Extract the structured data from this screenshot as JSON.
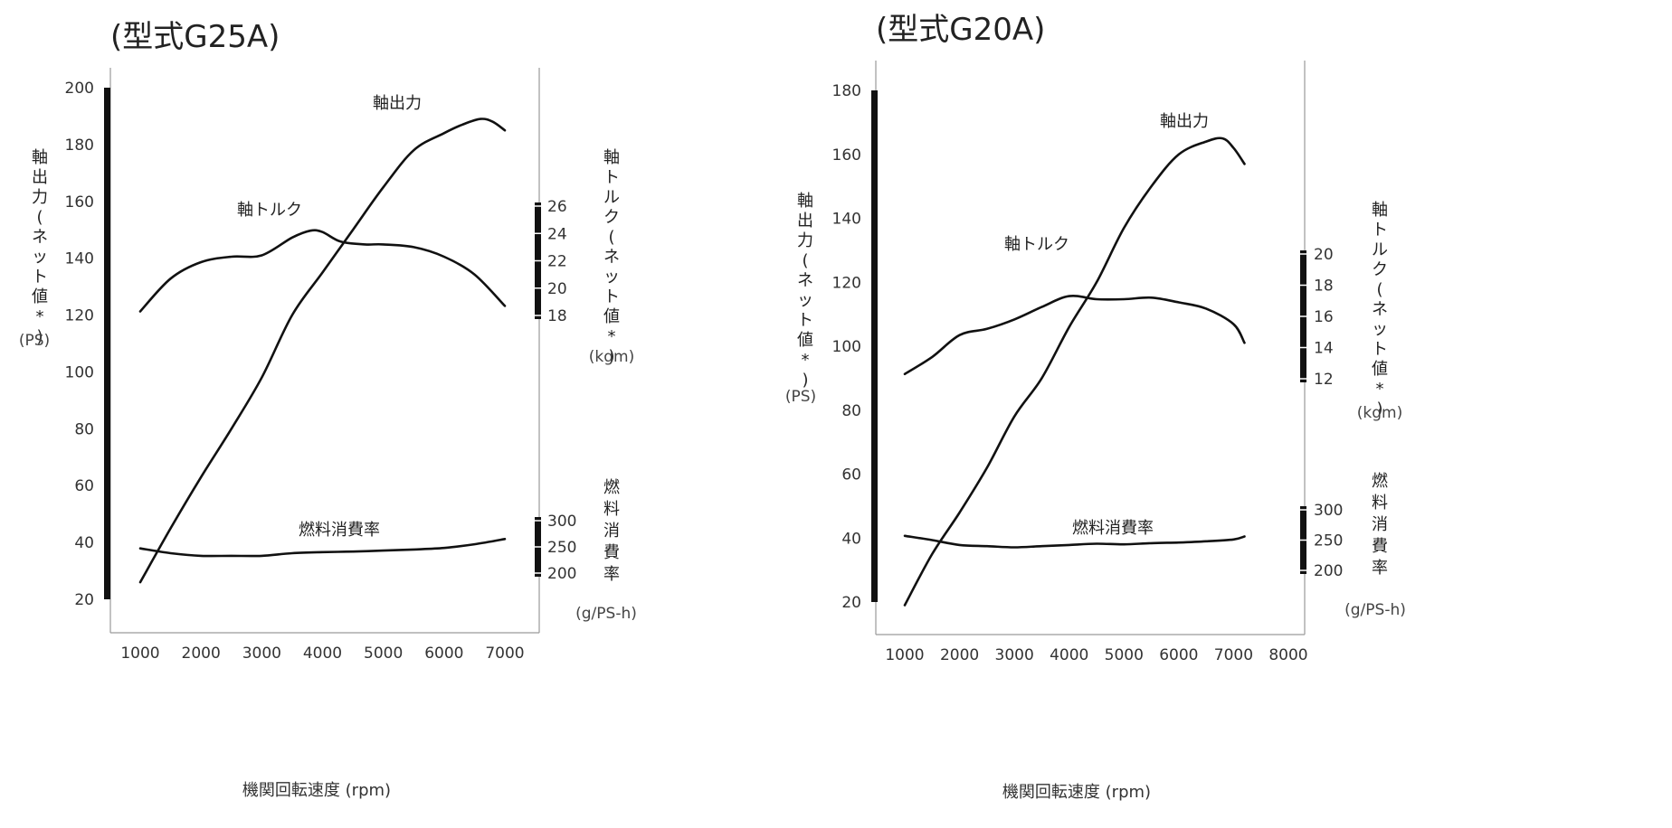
{
  "chart_data": [
    {
      "type": "line",
      "title": "(型式G25A)",
      "xlabel": "機関回転速度 (rpm)",
      "x_ticks": [
        1000,
        2000,
        3000,
        4000,
        5000,
        6000,
        7000
      ],
      "x_range": [
        500,
        7500
      ],
      "power_axis": {
        "label": "軸出力(ネット値*)",
        "unit": "(PS)",
        "ticks": [
          20,
          40,
          60,
          80,
          100,
          120,
          140,
          160,
          180,
          200
        ],
        "range": [
          15,
          205
        ]
      },
      "torque_axis": {
        "label": "軸トルク(ネット値*)",
        "unit": "(kgm)",
        "ticks": [
          18,
          20,
          22,
          24,
          26
        ],
        "range": [
          18,
          26
        ]
      },
      "fuel_axis": {
        "label": "燃料消費率",
        "unit": "(g/PS-h)",
        "ticks": [
          200,
          250,
          300
        ],
        "range": [
          200,
          300
        ]
      },
      "series": [
        {
          "name": "軸出力",
          "axis": "power",
          "x": [
            1000,
            1500,
            2000,
            2500,
            3000,
            3500,
            4000,
            4500,
            5000,
            5500,
            6000,
            6300,
            6600,
            6800,
            7000
          ],
          "y": [
            26,
            45,
            63,
            80,
            98,
            120,
            135,
            150,
            165,
            178,
            184,
            187,
            189,
            188,
            185
          ]
        },
        {
          "name": "軸トルク",
          "axis": "torque",
          "x": [
            1000,
            1500,
            2000,
            2500,
            3000,
            3500,
            3800,
            4000,
            4300,
            4700,
            5000,
            5500,
            6000,
            6500,
            7000
          ],
          "y": [
            18.3,
            20.7,
            21.9,
            22.3,
            22.4,
            23.7,
            24.2,
            24.1,
            23.4,
            23.2,
            23.2,
            23.0,
            22.3,
            21.0,
            18.7
          ]
        },
        {
          "name": "燃料消費率",
          "axis": "fuel",
          "x": [
            1000,
            1500,
            2000,
            2500,
            3000,
            3500,
            4000,
            4500,
            5000,
            5500,
            6000,
            6500,
            7000
          ],
          "y": [
            247,
            238,
            233,
            233,
            233,
            238,
            240,
            241,
            243,
            245,
            248,
            255,
            265
          ]
        }
      ]
    },
    {
      "type": "line",
      "title": "(型式G20A)",
      "xlabel": "機関回転速度 (rpm)",
      "x_ticks": [
        1000,
        2000,
        3000,
        4000,
        5000,
        6000,
        7000,
        8000
      ],
      "x_range": [
        500,
        8000
      ],
      "power_axis": {
        "label": "軸出力(ネット値*)",
        "unit": "(PS)",
        "ticks": [
          20,
          40,
          60,
          80,
          100,
          120,
          140,
          160,
          180
        ],
        "range": [
          15,
          185
        ]
      },
      "torque_axis": {
        "label": "軸トルク(ネット値*)",
        "unit": "(kgm)",
        "ticks": [
          12,
          14,
          16,
          18,
          20
        ],
        "range": [
          12,
          20
        ]
      },
      "fuel_axis": {
        "label": "燃料消費率",
        "unit": "(g/PS-h)",
        "ticks": [
          200,
          250,
          300
        ],
        "range": [
          200,
          300
        ]
      },
      "series": [
        {
          "name": "軸出力",
          "axis": "power",
          "x": [
            1000,
            1500,
            2000,
            2500,
            3000,
            3500,
            4000,
            4500,
            5000,
            5500,
            6000,
            6500,
            6800,
            7000,
            7200
          ],
          "y": [
            19,
            35,
            48,
            62,
            78,
            90,
            106,
            120,
            137,
            150,
            160,
            164,
            165,
            162,
            157
          ]
        },
        {
          "name": "軸トルク",
          "axis": "torque",
          "x": [
            1000,
            1500,
            2000,
            2500,
            3000,
            3500,
            4000,
            4500,
            5000,
            5500,
            6000,
            6500,
            7000,
            7200
          ],
          "y": [
            12.3,
            13.4,
            14.8,
            15.2,
            15.8,
            16.6,
            17.3,
            17.1,
            17.1,
            17.2,
            16.9,
            16.5,
            15.5,
            14.3
          ]
        },
        {
          "name": "燃料消費率",
          "axis": "fuel",
          "x": [
            1000,
            1500,
            2000,
            2500,
            3000,
            3500,
            4000,
            4500,
            5000,
            5500,
            6000,
            6500,
            7000,
            7200
          ],
          "y": [
            257,
            250,
            242,
            240,
            238,
            240,
            242,
            244,
            243,
            245,
            246,
            248,
            251,
            256
          ]
        }
      ]
    }
  ]
}
